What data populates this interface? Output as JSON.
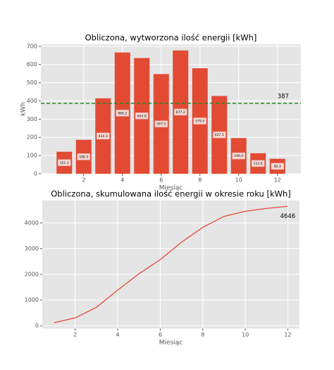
{
  "chart_data": [
    {
      "type": "bar",
      "title": "Obliczona, wytworzona ilość energii [kWh]",
      "xlabel": "Miesiąc",
      "ylabel": "kWh",
      "x": [
        1,
        2,
        3,
        4,
        5,
        6,
        7,
        8,
        9,
        10,
        11,
        12
      ],
      "values": [
        121.1,
        186.3,
        414.3,
        666.2,
        635.6,
        547.5,
        677.2,
        579.5,
        427.1,
        196.0,
        112.6,
        82.3
      ],
      "value_labels": [
        "121.1",
        "186.3",
        "414.3",
        "666.2",
        "635.6",
        "547.5",
        "677.2",
        "579.5",
        "427.1",
        "196.0",
        "112.6",
        "82.3"
      ],
      "color": "#E24A33",
      "xlim": [
        -0.21,
        13.21
      ],
      "xticks": [
        2,
        4,
        6,
        8,
        10,
        12
      ],
      "ylim": [
        0,
        711
      ],
      "yticks": [
        0,
        100,
        200,
        300,
        400,
        500,
        600,
        700
      ],
      "mean_line": {
        "value": 387,
        "label": "387",
        "color": "#228b22"
      },
      "grid": true
    },
    {
      "type": "line",
      "title": "Obliczona, skumulowana ilość energii w okresie roku [kWh]",
      "xlabel": "Miesiąc",
      "x": [
        1,
        2,
        3,
        4,
        5,
        6,
        7,
        8,
        9,
        10,
        11,
        12
      ],
      "values": [
        121.1,
        307.4,
        721.7,
        1387.9,
        2023.5,
        2571.0,
        3248.2,
        3827.7,
        4254.8,
        4450.8,
        4563.4,
        4645.7
      ],
      "color": "#E24A33",
      "xlim": [
        0.45,
        12.55
      ],
      "xticks": [
        2,
        4,
        6,
        8,
        10,
        12
      ],
      "ylim": [
        -105,
        4872
      ],
      "yticks": [
        0,
        1000,
        2000,
        3000,
        4000
      ],
      "end_label": {
        "value": 4646,
        "label": "4646"
      },
      "grid": true
    }
  ]
}
